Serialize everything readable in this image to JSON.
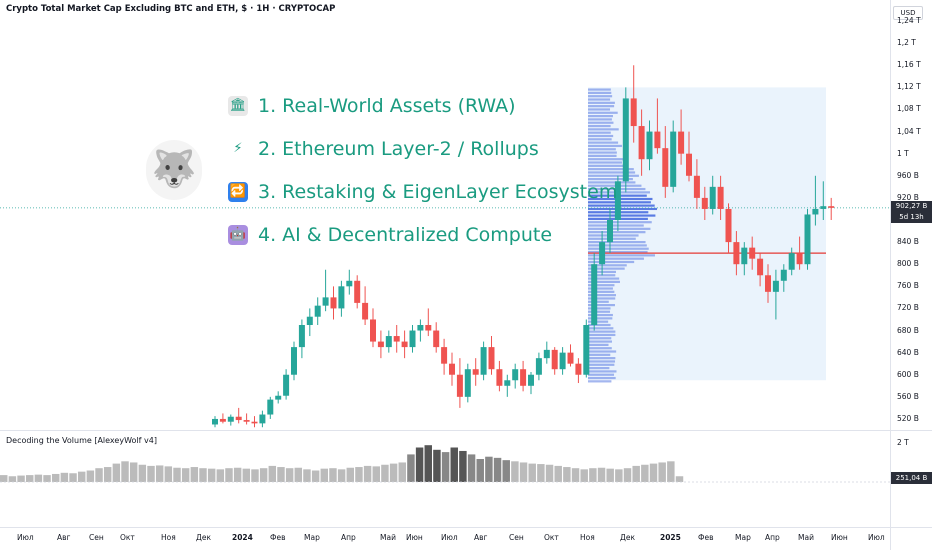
{
  "chart_title": "Crypto Total Market Cap Excluding BTC and ETH, $ · 1H · CRYPTOCAP",
  "currency": "USD",
  "price_axis": [
    "1,24 T",
    "1,2 T",
    "1,16 T",
    "1,12 T",
    "1,08 T",
    "1,04 T",
    "1 T",
    "960 B",
    "920 B",
    "840 B",
    "800 B",
    "760 B",
    "720 B",
    "680 B",
    "640 B",
    "600 B",
    "560 B",
    "520 B"
  ],
  "last_price": "902,27 B",
  "countdown": "5d 13h",
  "volume_axis": [
    "2 T"
  ],
  "last_volume": "251,04 B",
  "indicator_title": "Decoding the Volume [AlexeyWolf v4]",
  "time_axis": [
    "Июл",
    "Авг",
    "Сен",
    "Окт",
    "Ноя",
    "Дек",
    "2024",
    "Фев",
    "Мар",
    "Апр",
    "Май",
    "Июн",
    "Июл",
    "Авг",
    "Сен",
    "Окт",
    "Ноя",
    "Дек",
    "2025",
    "Фев",
    "Мар",
    "Апр",
    "Май",
    "Июн",
    "Июл"
  ],
  "bold_labels": [
    "2024",
    "2025"
  ],
  "overlay_items": [
    {
      "icon": "bank-icon",
      "glyph": "🏛",
      "bg": "#e8e8e8",
      "text": "1. Real-World Assets (RWA)"
    },
    {
      "icon": "lightning-icon",
      "glyph": "⚡",
      "bg": "#ffffff",
      "text": "2. Ethereum Layer-2 / Rollups"
    },
    {
      "icon": "repeat-icon",
      "glyph": "🔁",
      "bg": "#2f80ed",
      "text": "3. Restaking & EigenLayer Ecosystem"
    },
    {
      "icon": "robot-icon",
      "glyph": "🤖",
      "bg": "#a98ee0",
      "text": "4. AI & Decentralized Compute"
    }
  ],
  "colors": {
    "up": "#26a69a",
    "down": "#ef5350",
    "accent_text": "#1a9b80",
    "profile": "#4a6ee0",
    "poc": "#e53935"
  },
  "chart_data": {
    "type": "candlestick",
    "title": "Crypto Total Market Cap Excluding BTC and ETH, $ · 1H · CRYPTOCAP",
    "y_unit": "B USD",
    "ylim": [
      500,
      1260
    ],
    "candles": [
      [
        510,
        525,
        505,
        520
      ],
      [
        520,
        530,
        512,
        515
      ],
      [
        515,
        528,
        508,
        524
      ],
      [
        524,
        540,
        512,
        518
      ],
      [
        518,
        530,
        510,
        515
      ],
      [
        515,
        525,
        505,
        512
      ],
      [
        512,
        535,
        505,
        528
      ],
      [
        528,
        560,
        520,
        555
      ],
      [
        555,
        570,
        548,
        562
      ],
      [
        562,
        610,
        555,
        600
      ],
      [
        600,
        660,
        590,
        650
      ],
      [
        650,
        700,
        630,
        690
      ],
      [
        690,
        720,
        670,
        705
      ],
      [
        705,
        740,
        690,
        725
      ],
      [
        725,
        790,
        715,
        740
      ],
      [
        740,
        760,
        700,
        720
      ],
      [
        720,
        770,
        705,
        760
      ],
      [
        760,
        790,
        745,
        770
      ],
      [
        770,
        780,
        720,
        730
      ],
      [
        730,
        760,
        690,
        700
      ],
      [
        700,
        720,
        650,
        660
      ],
      [
        660,
        680,
        630,
        650
      ],
      [
        650,
        680,
        640,
        670
      ],
      [
        670,
        690,
        640,
        660
      ],
      [
        660,
        680,
        630,
        650
      ],
      [
        650,
        690,
        640,
        680
      ],
      [
        680,
        700,
        660,
        690
      ],
      [
        690,
        720,
        670,
        680
      ],
      [
        680,
        695,
        640,
        650
      ],
      [
        650,
        665,
        600,
        620
      ],
      [
        620,
        640,
        580,
        600
      ],
      [
        600,
        630,
        540,
        560
      ],
      [
        560,
        620,
        550,
        610
      ],
      [
        610,
        630,
        580,
        600
      ],
      [
        600,
        660,
        590,
        650
      ],
      [
        650,
        670,
        600,
        610
      ],
      [
        610,
        625,
        570,
        580
      ],
      [
        580,
        600,
        560,
        590
      ],
      [
        590,
        620,
        575,
        610
      ],
      [
        610,
        625,
        570,
        580
      ],
      [
        580,
        605,
        565,
        600
      ],
      [
        600,
        640,
        590,
        630
      ],
      [
        630,
        660,
        620,
        645
      ],
      [
        645,
        650,
        600,
        610
      ],
      [
        610,
        650,
        600,
        640
      ],
      [
        640,
        655,
        615,
        620
      ],
      [
        620,
        630,
        585,
        600
      ],
      [
        600,
        700,
        595,
        690
      ],
      [
        690,
        820,
        680,
        800
      ],
      [
        800,
        860,
        780,
        840
      ],
      [
        840,
        900,
        820,
        880
      ],
      [
        880,
        960,
        860,
        950
      ],
      [
        950,
        1120,
        930,
        1100
      ],
      [
        1100,
        1160,
        1020,
        1050
      ],
      [
        1050,
        1080,
        960,
        990
      ],
      [
        990,
        1060,
        970,
        1040
      ],
      [
        1040,
        1100,
        1000,
        1010
      ],
      [
        1010,
        1050,
        920,
        940
      ],
      [
        940,
        1060,
        930,
        1040
      ],
      [
        1040,
        1080,
        980,
        1000
      ],
      [
        1000,
        1040,
        950,
        960
      ],
      [
        960,
        990,
        900,
        920
      ],
      [
        920,
        940,
        880,
        900
      ],
      [
        900,
        960,
        890,
        940
      ],
      [
        940,
        960,
        880,
        900
      ],
      [
        900,
        910,
        820,
        840
      ],
      [
        840,
        860,
        780,
        800
      ],
      [
        800,
        840,
        780,
        830
      ],
      [
        830,
        850,
        790,
        810
      ],
      [
        810,
        820,
        760,
        780
      ],
      [
        780,
        800,
        730,
        750
      ],
      [
        750,
        790,
        700,
        770
      ],
      [
        770,
        800,
        750,
        790
      ],
      [
        790,
        830,
        780,
        820
      ],
      [
        820,
        850,
        790,
        800
      ],
      [
        800,
        900,
        790,
        890
      ],
      [
        890,
        960,
        870,
        900
      ],
      [
        900,
        950,
        880,
        905
      ],
      [
        905,
        920,
        880,
        902
      ]
    ],
    "point_of_control": 820,
    "volume": [
      0.3,
      0.25,
      0.28,
      0.3,
      0.32,
      0.3,
      0.35,
      0.4,
      0.38,
      0.45,
      0.5,
      0.6,
      0.65,
      0.8,
      0.9,
      0.85,
      0.75,
      0.7,
      0.72,
      0.68,
      0.62,
      0.6,
      0.65,
      0.6,
      0.58,
      0.55,
      0.6,
      0.62,
      0.58,
      0.55,
      0.6,
      0.7,
      0.65,
      0.6,
      0.62,
      0.55,
      0.5,
      0.58,
      0.6,
      0.55,
      0.62,
      0.65,
      0.7,
      0.68,
      0.75,
      0.8,
      0.85,
      1.2,
      1.5,
      1.6,
      1.4,
      1.3,
      1.5,
      1.35,
      1.2,
      1.0,
      1.1,
      1.05,
      0.95,
      0.9,
      0.85,
      0.8,
      0.78,
      0.75,
      0.7,
      0.65,
      0.6,
      0.55,
      0.6,
      0.62,
      0.58,
      0.55,
      0.6,
      0.7,
      0.75,
      0.8,
      0.85,
      0.9,
      0.25
    ],
    "volume_ylim": [
      0,
      2
    ]
  }
}
